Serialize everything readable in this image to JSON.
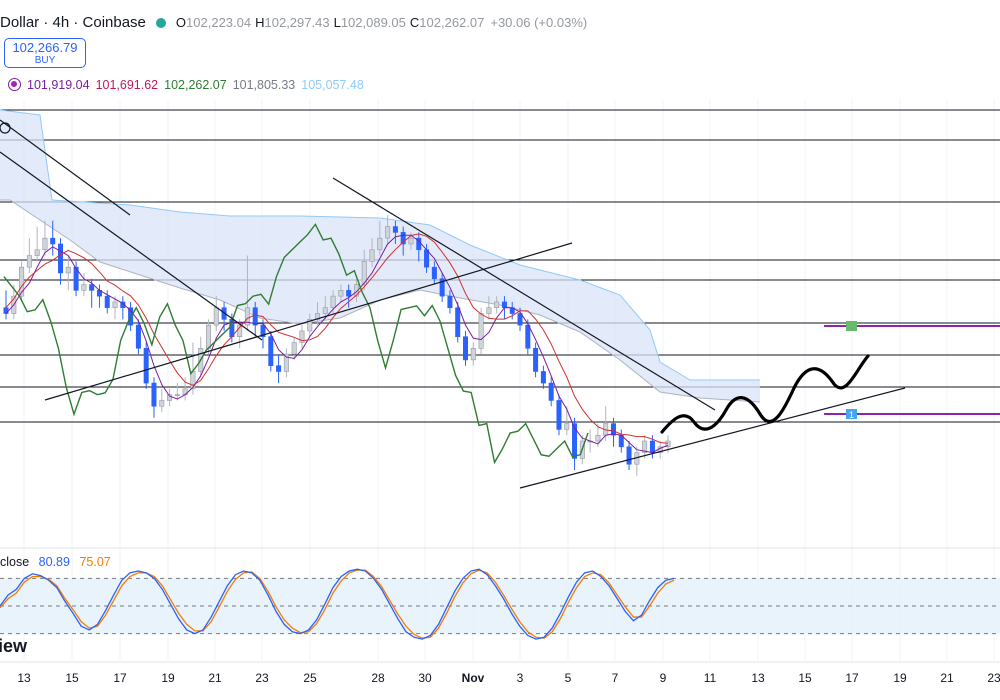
{
  "header": {
    "symbol_title": "Dollar · 4h · Coinbase",
    "ohlc": [
      {
        "key": "O",
        "value": "102,223.04"
      },
      {
        "key": "H",
        "value": "102,297.43"
      },
      {
        "key": "L",
        "value": "102,089.05"
      },
      {
        "key": "C",
        "value": "102,262.07"
      }
    ],
    "change": "+30.06 (+0.03%)",
    "status_color": "#26a69a"
  },
  "buy_button": {
    "price": "102,266.79",
    "label": "BUY",
    "color": "#2962ff"
  },
  "ichimoku_values": [
    {
      "value": "101,919.04",
      "color": "#7b1fa2"
    },
    {
      "value": "101,691.62",
      "color": "#c2185b"
    },
    {
      "value": "102,262.07",
      "color": "#2e7d32"
    },
    {
      "value": "101,805.33",
      "color": "#787b86"
    },
    {
      "value": "105,057.48",
      "color": "#90caf9"
    }
  ],
  "stoch_legend": {
    "label": "close",
    "k": "80.89",
    "d": "75.07",
    "k_color": "#2962ff",
    "d_color": "#f57c00"
  },
  "watermark": "iew",
  "chart_data": {
    "type": "candlestick",
    "title": "",
    "x_tick_labels": [
      "13",
      "15",
      "17",
      "19",
      "21",
      "23",
      "25",
      "28",
      "30",
      "Nov",
      "3",
      "5",
      "7",
      "9",
      "11",
      "13",
      "15",
      "17",
      "19",
      "21",
      "23"
    ],
    "price_candles_approx": [
      {
        "o": 101,
        "c": 100,
        "h": 104,
        "l": 99
      },
      {
        "o": 100,
        "c": 103,
        "h": 105,
        "l": 99
      },
      {
        "o": 103,
        "c": 108,
        "h": 109,
        "l": 102
      },
      {
        "o": 108,
        "c": 110,
        "h": 113,
        "l": 107
      },
      {
        "o": 110,
        "c": 111,
        "h": 115,
        "l": 109
      },
      {
        "o": 111,
        "c": 113,
        "h": 116,
        "l": 110
      },
      {
        "o": 113,
        "c": 112,
        "h": 116,
        "l": 110
      },
      {
        "o": 112,
        "c": 107,
        "h": 113,
        "l": 105
      },
      {
        "o": 107,
        "c": 108,
        "h": 110,
        "l": 104
      },
      {
        "o": 108,
        "c": 104,
        "h": 109,
        "l": 103
      },
      {
        "o": 104,
        "c": 105,
        "h": 107,
        "l": 103
      },
      {
        "o": 105,
        "c": 104,
        "h": 106,
        "l": 101
      },
      {
        "o": 104,
        "c": 103,
        "h": 105,
        "l": 101
      },
      {
        "o": 103,
        "c": 101,
        "h": 104,
        "l": 100
      },
      {
        "o": 101,
        "c": 102,
        "h": 103,
        "l": 99
      },
      {
        "o": 102,
        "c": 101,
        "h": 103,
        "l": 99
      },
      {
        "o": 101,
        "c": 98,
        "h": 102,
        "l": 97
      },
      {
        "o": 98,
        "c": 94,
        "h": 99,
        "l": 93
      },
      {
        "o": 94,
        "c": 88,
        "h": 95,
        "l": 87
      },
      {
        "o": 88,
        "c": 84,
        "h": 89,
        "l": 82
      },
      {
        "o": 84,
        "c": 85,
        "h": 87,
        "l": 83
      },
      {
        "o": 85,
        "c": 86,
        "h": 87,
        "l": 84
      },
      {
        "o": 86,
        "c": 86,
        "h": 88,
        "l": 85
      },
      {
        "o": 86,
        "c": 87,
        "h": 89,
        "l": 85
      },
      {
        "o": 87,
        "c": 90,
        "h": 95,
        "l": 86
      },
      {
        "o": 90,
        "c": 94,
        "h": 96,
        "l": 89
      },
      {
        "o": 94,
        "c": 98,
        "h": 99,
        "l": 93
      },
      {
        "o": 98,
        "c": 101,
        "h": 103,
        "l": 97
      },
      {
        "o": 101,
        "c": 99,
        "h": 102,
        "l": 97
      },
      {
        "o": 99,
        "c": 96,
        "h": 100,
        "l": 95
      },
      {
        "o": 96,
        "c": 98,
        "h": 99,
        "l": 94
      },
      {
        "o": 98,
        "c": 101,
        "h": 110,
        "l": 97
      },
      {
        "o": 101,
        "c": 98,
        "h": 102,
        "l": 96
      },
      {
        "o": 98,
        "c": 96,
        "h": 99,
        "l": 94
      },
      {
        "o": 96,
        "c": 91,
        "h": 97,
        "l": 90
      },
      {
        "o": 91,
        "c": 90,
        "h": 93,
        "l": 88
      },
      {
        "o": 90,
        "c": 93,
        "h": 94,
        "l": 89
      },
      {
        "o": 93,
        "c": 95,
        "h": 96,
        "l": 92
      },
      {
        "o": 95,
        "c": 97,
        "h": 98,
        "l": 94
      },
      {
        "o": 97,
        "c": 99,
        "h": 100,
        "l": 96
      },
      {
        "o": 99,
        "c": 100,
        "h": 102,
        "l": 98
      },
      {
        "o": 100,
        "c": 101,
        "h": 103,
        "l": 99
      },
      {
        "o": 101,
        "c": 103,
        "h": 104,
        "l": 100
      },
      {
        "o": 103,
        "c": 104,
        "h": 105,
        "l": 102
      },
      {
        "o": 104,
        "c": 103,
        "h": 105,
        "l": 101
      },
      {
        "o": 103,
        "c": 105,
        "h": 106,
        "l": 102
      },
      {
        "o": 105,
        "c": 109,
        "h": 111,
        "l": 104
      },
      {
        "o": 109,
        "c": 111,
        "h": 113,
        "l": 108
      },
      {
        "o": 111,
        "c": 113,
        "h": 116,
        "l": 110
      },
      {
        "o": 113,
        "c": 115,
        "h": 117,
        "l": 112
      },
      {
        "o": 115,
        "c": 114,
        "h": 116,
        "l": 112
      },
      {
        "o": 114,
        "c": 112,
        "h": 115,
        "l": 110
      },
      {
        "o": 112,
        "c": 113,
        "h": 114,
        "l": 111
      },
      {
        "o": 113,
        "c": 111,
        "h": 114,
        "l": 109
      },
      {
        "o": 111,
        "c": 108,
        "h": 112,
        "l": 107
      },
      {
        "o": 108,
        "c": 106,
        "h": 109,
        "l": 105
      },
      {
        "o": 106,
        "c": 103,
        "h": 107,
        "l": 102
      },
      {
        "o": 103,
        "c": 101,
        "h": 104,
        "l": 100
      },
      {
        "o": 101,
        "c": 96,
        "h": 102,
        "l": 95
      },
      {
        "o": 96,
        "c": 92,
        "h": 97,
        "l": 91
      },
      {
        "o": 92,
        "c": 94,
        "h": 95,
        "l": 91
      },
      {
        "o": 94,
        "c": 100,
        "h": 101,
        "l": 93
      },
      {
        "o": 100,
        "c": 101,
        "h": 103,
        "l": 99
      },
      {
        "o": 101,
        "c": 102,
        "h": 103,
        "l": 100
      },
      {
        "o": 102,
        "c": 101,
        "h": 103,
        "l": 99
      },
      {
        "o": 101,
        "c": 100,
        "h": 102,
        "l": 99
      },
      {
        "o": 100,
        "c": 98,
        "h": 101,
        "l": 97
      },
      {
        "o": 98,
        "c": 94,
        "h": 99,
        "l": 93
      },
      {
        "o": 94,
        "c": 90,
        "h": 95,
        "l": 89
      },
      {
        "o": 90,
        "c": 88,
        "h": 91,
        "l": 87
      },
      {
        "o": 88,
        "c": 85,
        "h": 89,
        "l": 84
      },
      {
        "o": 85,
        "c": 80,
        "h": 86,
        "l": 79
      },
      {
        "o": 80,
        "c": 81,
        "h": 84,
        "l": 79
      },
      {
        "o": 81,
        "c": 75,
        "h": 82,
        "l": 73
      },
      {
        "o": 75,
        "c": 78,
        "h": 79,
        "l": 74
      },
      {
        "o": 78,
        "c": 78,
        "h": 80,
        "l": 76
      },
      {
        "o": 78,
        "c": 79,
        "h": 81,
        "l": 77
      },
      {
        "o": 79,
        "c": 81,
        "h": 84,
        "l": 78
      },
      {
        "o": 81,
        "c": 79,
        "h": 82,
        "l": 77
      },
      {
        "o": 79,
        "c": 77,
        "h": 80,
        "l": 76
      },
      {
        "o": 77,
        "c": 74,
        "h": 78,
        "l": 73
      },
      {
        "o": 74,
        "c": 76,
        "h": 77,
        "l": 72
      },
      {
        "o": 76,
        "c": 78,
        "h": 79,
        "l": 75
      },
      {
        "o": 78,
        "c": 76,
        "h": 79,
        "l": 75
      },
      {
        "o": 76,
        "c": 77,
        "h": 78,
        "l": 75
      },
      {
        "o": 77,
        "c": 78,
        "h": 79,
        "l": 76
      }
    ],
    "stochastic": {
      "k": [
        50,
        62,
        68,
        80,
        85,
        83,
        78,
        70,
        55,
        42,
        28,
        24,
        30,
        45,
        62,
        78,
        86,
        88,
        86,
        80,
        68,
        52,
        36,
        24,
        20,
        24,
        38,
        55,
        72,
        84,
        88,
        86,
        78,
        62,
        44,
        30,
        22,
        20,
        24,
        35,
        52,
        70,
        82,
        88,
        90,
        88,
        80,
        68,
        52,
        36,
        22,
        16,
        14,
        18,
        30,
        48,
        66,
        80,
        88,
        90,
        84,
        72,
        58,
        42,
        28,
        18,
        14,
        16,
        26,
        42,
        60,
        76,
        86,
        88,
        82,
        72,
        58,
        44,
        34,
        40,
        56,
        70,
        78,
        80
      ],
      "d": [
        48,
        58,
        64,
        76,
        82,
        82,
        79,
        72,
        58,
        46,
        33,
        26,
        28,
        40,
        56,
        72,
        82,
        86,
        86,
        82,
        72,
        57,
        42,
        30,
        23,
        23,
        33,
        49,
        66,
        79,
        86,
        87,
        80,
        66,
        49,
        35,
        26,
        21,
        22,
        31,
        46,
        64,
        77,
        86,
        89,
        89,
        82,
        71,
        56,
        41,
        28,
        19,
        15,
        16,
        26,
        42,
        60,
        75,
        85,
        89,
        86,
        76,
        62,
        47,
        33,
        22,
        16,
        15,
        22,
        36,
        54,
        70,
        82,
        86,
        84,
        75,
        62,
        49,
        38,
        38,
        50,
        64,
        74,
        78
      ],
      "levels": [
        80,
        50,
        20
      ]
    },
    "horizontal_levels_count": 9,
    "trend_lines_count": 5,
    "grid": true
  }
}
